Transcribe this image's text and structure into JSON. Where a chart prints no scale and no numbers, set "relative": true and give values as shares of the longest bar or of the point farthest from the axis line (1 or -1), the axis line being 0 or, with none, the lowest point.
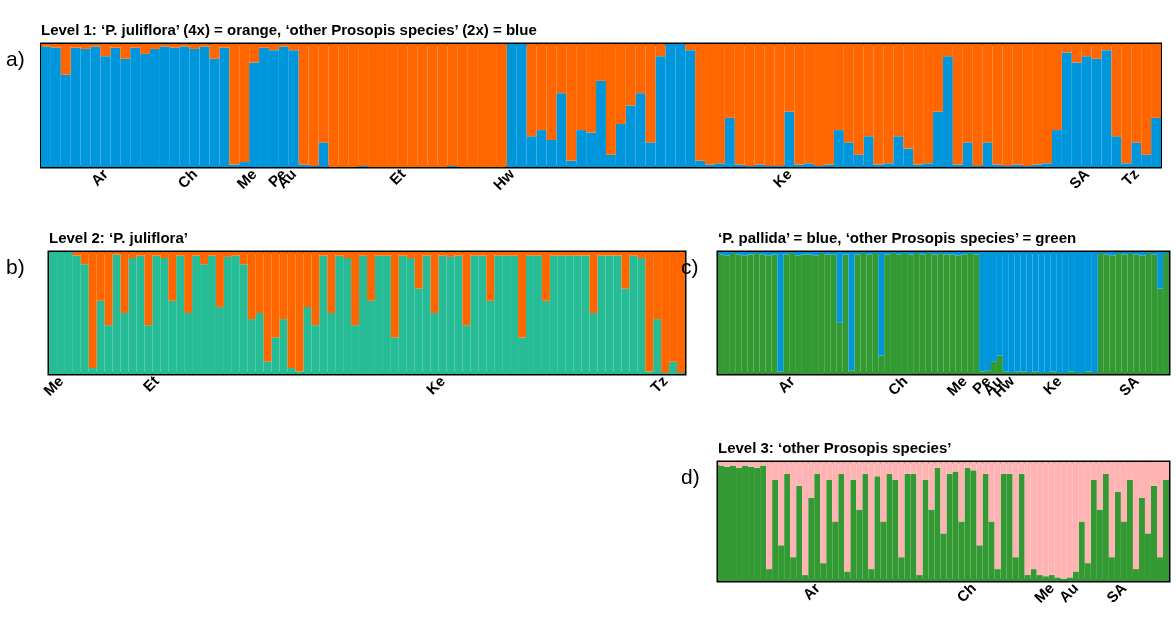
{
  "chart_data": [
    {
      "type": "bar",
      "stacked": true,
      "relative": true,
      "title": "Level 1: ‘P. juliflora’ (4x) = orange, ‘other Prosopis species’ (2x) = blue",
      "annotations": [
        "a)"
      ],
      "categories": [
        null,
        null,
        null,
        null,
        null,
        null,
        "Ar",
        null,
        null,
        null,
        null,
        null,
        null,
        null,
        null,
        "Ch",
        null,
        null,
        null,
        null,
        null,
        "Me",
        null,
        null,
        "Pe",
        "Au",
        null,
        null,
        null,
        null,
        null,
        null,
        null,
        null,
        null,
        null,
        "Et",
        null,
        null,
        null,
        null,
        null,
        null,
        null,
        null,
        null,
        null,
        "Hw",
        null,
        null,
        null,
        null,
        null,
        null,
        null,
        null,
        null,
        null,
        null,
        null,
        null,
        null,
        null,
        null,
        null,
        null,
        null,
        null,
        null,
        null,
        null,
        null,
        null,
        null,
        null,
        "Ke",
        null,
        null,
        null,
        null,
        null,
        null,
        null,
        null,
        null,
        null,
        null,
        null,
        null,
        null,
        null,
        null,
        null,
        null,
        null,
        null,
        null,
        null,
        null,
        null,
        null,
        null,
        null,
        null,
        null,
        "SA",
        null,
        null,
        null,
        null,
        "Tz",
        null,
        null
      ],
      "series": [
        {
          "color": "#0096dc",
          "values": [
            0.98,
            0.97,
            0.75,
            0.97,
            0.96,
            0.98,
            0.9,
            0.97,
            0.88,
            0.97,
            0.92,
            0.96,
            0.98,
            0.97,
            0.98,
            0.96,
            0.98,
            0.88,
            0.97,
            0.02,
            0.04,
            0.85,
            0.97,
            0.95,
            0.98,
            0.95,
            0.02,
            0.01,
            0.2,
            0,
            0,
            0,
            0.01,
            0,
            0,
            0,
            0,
            0,
            0,
            0,
            0,
            0.01,
            0,
            0,
            0,
            0,
            0,
            1,
            1,
            0.25,
            0.3,
            0.22,
            0.6,
            0.05,
            0.3,
            0.28,
            0.7,
            0.1,
            0.35,
            0.5,
            0.6,
            0.2,
            0.9,
            1,
            1,
            0.95,
            0.05,
            0.02,
            0.03,
            0.4,
            0.02,
            0.01,
            0.02,
            0.01,
            0.01,
            0.45,
            0.02,
            0.03,
            0.01,
            0.02,
            0.3,
            0.2,
            0.1,
            0.25,
            0.02,
            0.03,
            0.25,
            0.15,
            0.02,
            0.03,
            0.45,
            0.9,
            0.02,
            0.2,
            0.01,
            0.2,
            0.02,
            0.01,
            0.02,
            0.01,
            0.02,
            0.03,
            0.3,
            0.93,
            0.85,
            0.9,
            0.88,
            0.95,
            0.25,
            0.03,
            0.2,
            0.1,
            0.4
          ]
        },
        {
          "color": "#ff6600",
          "values": [
            0.02,
            0.03,
            0.25,
            0.03,
            0.04,
            0.02,
            0.1,
            0.03,
            0.12,
            0.03,
            0.08,
            0.04,
            0.02,
            0.03,
            0.02,
            0.04,
            0.02,
            0.12,
            0.03,
            0.98,
            0.96,
            0.15,
            0.03,
            0.05,
            0.02,
            0.05,
            0.98,
            0.99,
            0.8,
            1,
            1,
            1,
            0.99,
            1,
            1,
            1,
            1,
            1,
            1,
            1,
            1,
            0.99,
            1,
            1,
            1,
            1,
            1,
            0,
            0,
            0.75,
            0.7,
            0.78,
            0.4,
            0.95,
            0.7,
            0.72,
            0.3,
            0.9,
            0.65,
            0.5,
            0.4,
            0.8,
            0.1,
            0,
            0,
            0.05,
            0.95,
            0.98,
            0.97,
            0.6,
            0.98,
            0.99,
            0.98,
            0.99,
            0.99,
            0.55,
            0.98,
            0.97,
            0.99,
            0.98,
            0.7,
            0.8,
            0.9,
            0.75,
            0.98,
            0.97,
            0.75,
            0.85,
            0.98,
            0.97,
            0.55,
            0.1,
            0.98,
            0.8,
            0.99,
            0.8,
            0.98,
            0.99,
            0.98,
            0.99,
            0.98,
            0.97,
            0.7,
            0.07,
            0.15,
            0.1,
            0.12,
            0.05,
            0.75,
            0.97,
            0.8,
            0.9,
            0.6
          ]
        }
      ]
    },
    {
      "type": "bar",
      "stacked": true,
      "relative": true,
      "title": "Level 2: ‘P. juliflora’",
      "annotations": [
        "b)"
      ],
      "categories": [
        null,
        "Me",
        null,
        null,
        null,
        null,
        null,
        null,
        null,
        null,
        null,
        null,
        null,
        "Et",
        null,
        null,
        null,
        null,
        null,
        null,
        null,
        null,
        null,
        null,
        null,
        null,
        null,
        null,
        null,
        null,
        null,
        null,
        null,
        null,
        null,
        null,
        null,
        null,
        null,
        null,
        null,
        null,
        null,
        null,
        null,
        null,
        null,
        null,
        null,
        "Ke",
        null,
        null,
        null,
        null,
        null,
        null,
        null,
        null,
        null,
        null,
        null,
        null,
        null,
        null,
        null,
        null,
        null,
        null,
        null,
        null,
        null,
        null,
        null,
        null,
        null,
        null,
        null,
        "Tz",
        null,
        null
      ],
      "series": [
        {
          "color": "#26bc96",
          "values": [
            1,
            1,
            1,
            0.97,
            0.9,
            0.05,
            0.6,
            0.4,
            0.98,
            0.5,
            0.95,
            0.97,
            0.4,
            0.97,
            0.95,
            0.6,
            0.97,
            0.5,
            0.97,
            0.9,
            0.97,
            0.55,
            0.96,
            0.97,
            0.9,
            0.45,
            0.5,
            0.1,
            0.3,
            0.45,
            0.05,
            0.02,
            0.55,
            0.4,
            0.97,
            0.5,
            0.97,
            0.95,
            0.4,
            0.97,
            0.6,
            0.97,
            0.97,
            0.3,
            0.97,
            0.95,
            0.7,
            0.97,
            0.5,
            0.97,
            0.96,
            0.97,
            0.4,
            0.97,
            0.97,
            0.6,
            0.97,
            0.97,
            0.97,
            0.3,
            0.97,
            0.97,
            0.6,
            0.97,
            0.97,
            0.97,
            0.97,
            0.97,
            0.5,
            0.97,
            0.97,
            0.97,
            0.7,
            0.97,
            0.95,
            0.02,
            0.45,
            0.01,
            0.1,
            0.01
          ]
        },
        {
          "color": "#ff6600",
          "values": [
            0,
            0,
            0,
            0.03,
            0.1,
            0.95,
            0.4,
            0.6,
            0.02,
            0.5,
            0.05,
            0.03,
            0.6,
            0.03,
            0.05,
            0.4,
            0.03,
            0.5,
            0.03,
            0.1,
            0.03,
            0.45,
            0.04,
            0.03,
            0.1,
            0.55,
            0.5,
            0.9,
            0.7,
            0.55,
            0.95,
            0.98,
            0.45,
            0.6,
            0.03,
            0.5,
            0.03,
            0.05,
            0.6,
            0.03,
            0.4,
            0.03,
            0.03,
            0.7,
            0.03,
            0.05,
            0.3,
            0.03,
            0.5,
            0.03,
            0.04,
            0.03,
            0.6,
            0.03,
            0.03,
            0.4,
            0.03,
            0.03,
            0.03,
            0.7,
            0.03,
            0.03,
            0.4,
            0.03,
            0.03,
            0.03,
            0.03,
            0.03,
            0.5,
            0.03,
            0.03,
            0.03,
            0.3,
            0.03,
            0.05,
            0.98,
            0.55,
            0.99,
            0.9,
            0.99
          ]
        }
      ]
    },
    {
      "type": "bar",
      "stacked": true,
      "relative": true,
      "title": "‘P. pallida’ = blue, ‘other Prosopis species’ = green",
      "annotations": [
        "c)"
      ],
      "categories": [
        null,
        null,
        null,
        null,
        null,
        null,
        null,
        null,
        null,
        null,
        null,
        null,
        "Ar",
        null,
        null,
        null,
        null,
        null,
        null,
        null,
        null,
        null,
        null,
        null,
        null,
        null,
        null,
        null,
        null,
        null,
        null,
        "Ch",
        null,
        null,
        null,
        null,
        null,
        null,
        null,
        null,
        null,
        "Me",
        null,
        null,
        null,
        "Pe",
        null,
        "Au",
        null,
        "Hw",
        null,
        null,
        null,
        null,
        null,
        null,
        null,
        "Ke",
        null,
        null,
        null,
        null,
        null,
        null,
        null,
        null,
        null,
        null,
        null,
        null,
        "SA",
        null,
        null,
        null,
        null,
        null
      ],
      "series": [
        {
          "color": "#339933",
          "values": [
            0.98,
            0.97,
            0.99,
            0.98,
            0.97,
            0.98,
            0.99,
            0.98,
            0.97,
            0.98,
            0.02,
            0.98,
            0.99,
            0.97,
            0.98,
            0.98,
            0.97,
            0.99,
            0.98,
            0.98,
            0.42,
            0.98,
            0.03,
            0.98,
            0.99,
            0.98,
            0.99,
            0.15,
            0.98,
            0.99,
            0.98,
            0.99,
            0.98,
            0.99,
            0.98,
            0.99,
            0.98,
            0.99,
            0.98,
            0.98,
            0.97,
            0.98,
            0.99,
            0.98,
            0.02,
            0.03,
            0.1,
            0.15,
            0.02,
            0.01,
            0.02,
            0.02,
            0.01,
            0.02,
            0.01,
            0.01,
            0.02,
            0.01,
            0.01,
            0.02,
            0.01,
            0.01,
            0.02,
            0.01,
            0.99,
            0.98,
            0.97,
            0.99,
            0.98,
            0.99,
            0.98,
            0.97,
            0.99,
            0.98,
            0.7,
            0.99
          ]
        },
        {
          "color": "#0096dc",
          "values": [
            0.02,
            0.03,
            0.01,
            0.02,
            0.03,
            0.02,
            0.01,
            0.02,
            0.03,
            0.02,
            0.98,
            0.02,
            0.01,
            0.03,
            0.02,
            0.02,
            0.03,
            0.01,
            0.02,
            0.02,
            0.58,
            0.02,
            0.97,
            0.02,
            0.01,
            0.02,
            0.01,
            0.85,
            0.02,
            0.01,
            0.02,
            0.01,
            0.02,
            0.01,
            0.02,
            0.01,
            0.02,
            0.01,
            0.02,
            0.02,
            0.03,
            0.02,
            0.01,
            0.02,
            0.98,
            0.97,
            0.9,
            0.85,
            0.98,
            0.99,
            0.98,
            0.98,
            0.99,
            0.98,
            0.99,
            0.99,
            0.98,
            0.99,
            0.99,
            0.98,
            0.99,
            0.99,
            0.98,
            0.99,
            0.01,
            0.02,
            0.03,
            0.01,
            0.02,
            0.01,
            0.02,
            0.03,
            0.01,
            0.02,
            0.3,
            0.01
          ]
        }
      ]
    },
    {
      "type": "bar",
      "stacked": true,
      "relative": true,
      "title": "Level 3: ‘other Prosopis species’",
      "annotations": [
        "d)"
      ],
      "categories": [
        null,
        null,
        null,
        null,
        null,
        null,
        null,
        null,
        null,
        null,
        null,
        null,
        null,
        null,
        null,
        null,
        "Ar",
        null,
        null,
        null,
        null,
        null,
        null,
        null,
        null,
        null,
        null,
        null,
        null,
        null,
        null,
        null,
        null,
        null,
        null,
        null,
        null,
        null,
        null,
        null,
        null,
        null,
        "Ch",
        null,
        null,
        null,
        null,
        null,
        null,
        null,
        null,
        null,
        null,
        null,
        null,
        "Me",
        null,
        null,
        null,
        "Au",
        null,
        null,
        null,
        null,
        null,
        null,
        null,
        "SA",
        null,
        null,
        null,
        null,
        null,
        null,
        null
      ],
      "series": [
        {
          "color": "#339933",
          "values": [
            0.97,
            0.96,
            0.97,
            0.95,
            0.97,
            0.96,
            0.95,
            0.97,
            0.1,
            0.85,
            0.3,
            0.9,
            0.2,
            0.8,
            0.05,
            0.7,
            0.9,
            0.15,
            0.85,
            0.5,
            0.9,
            0.08,
            0.85,
            0.6,
            0.9,
            0.1,
            0.88,
            0.5,
            0.9,
            0.85,
            0.2,
            0.9,
            0.9,
            0.05,
            0.85,
            0.6,
            0.95,
            0.4,
            0.9,
            0.92,
            0.5,
            0.95,
            0.93,
            0.3,
            0.9,
            0.5,
            0.1,
            0.9,
            0.9,
            0.2,
            0.9,
            0.05,
            0.1,
            0.05,
            0.04,
            0.05,
            0.03,
            0.02,
            0.03,
            0.08,
            0.5,
            0.15,
            0.85,
            0.6,
            0.9,
            0.2,
            0.75,
            0.5,
            0.85,
            0.1,
            0.7,
            0.4,
            0.8,
            0.2,
            0.85
          ]
        },
        {
          "color": "#ffb3b3",
          "values": [
            0.03,
            0.04,
            0.03,
            0.05,
            0.03,
            0.04,
            0.05,
            0.03,
            0.9,
            0.15,
            0.7,
            0.1,
            0.8,
            0.2,
            0.95,
            0.3,
            0.1,
            0.85,
            0.15,
            0.5,
            0.1,
            0.92,
            0.15,
            0.4,
            0.1,
            0.9,
            0.12,
            0.5,
            0.1,
            0.15,
            0.8,
            0.1,
            0.1,
            0.95,
            0.15,
            0.4,
            0.05,
            0.6,
            0.1,
            0.08,
            0.5,
            0.05,
            0.07,
            0.7,
            0.1,
            0.5,
            0.9,
            0.1,
            0.1,
            0.8,
            0.1,
            0.95,
            0.9,
            0.95,
            0.96,
            0.95,
            0.97,
            0.98,
            0.97,
            0.92,
            0.5,
            0.85,
            0.15,
            0.4,
            0.1,
            0.8,
            0.25,
            0.5,
            0.15,
            0.9,
            0.3,
            0.6,
            0.2,
            0.8,
            0.15
          ]
        }
      ]
    }
  ]
}
